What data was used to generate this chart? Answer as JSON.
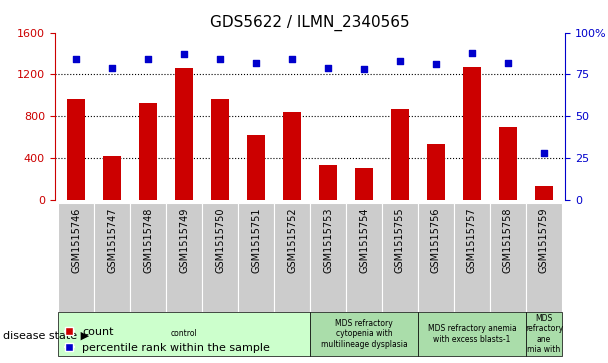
{
  "title": "GDS5622 / ILMN_2340565",
  "samples": [
    "GSM1515746",
    "GSM1515747",
    "GSM1515748",
    "GSM1515749",
    "GSM1515750",
    "GSM1515751",
    "GSM1515752",
    "GSM1515753",
    "GSM1515754",
    "GSM1515755",
    "GSM1515756",
    "GSM1515757",
    "GSM1515758",
    "GSM1515759"
  ],
  "counts": [
    960,
    420,
    930,
    1260,
    960,
    620,
    840,
    330,
    300,
    870,
    530,
    1270,
    700,
    130
  ],
  "percentiles": [
    84,
    79,
    84,
    87,
    84,
    82,
    84,
    79,
    78,
    83,
    81,
    88,
    82,
    28
  ],
  "bar_color": "#cc0000",
  "dot_color": "#0000cc",
  "ylim_left": [
    0,
    1600
  ],
  "ylim_right": [
    0,
    100
  ],
  "yticks_left": [
    0,
    400,
    800,
    1200,
    1600
  ],
  "yticks_right": [
    0,
    25,
    50,
    75,
    100
  ],
  "yticklabels_right": [
    "0",
    "25",
    "50",
    "75",
    "100%"
  ],
  "disease_groups": [
    {
      "label": "control",
      "start": 0,
      "end": 7,
      "color": "#ccffcc"
    },
    {
      "label": "MDS refractory\ncytopenia with\nmultilineage dysplasia",
      "start": 7,
      "end": 10,
      "color": "#aaddaa"
    },
    {
      "label": "MDS refractory anemia\nwith excess blasts-1",
      "start": 10,
      "end": 13,
      "color": "#aaddaa"
    },
    {
      "label": "MDS\nrefractory\nane\nmia with",
      "start": 13,
      "end": 14,
      "color": "#aaddaa"
    }
  ],
  "disease_state_label": "disease state",
  "legend_count_label": "count",
  "legend_pct_label": "percentile rank within the sample",
  "bg_color": "#ffffff",
  "tick_bg_color": "#cccccc",
  "grid_color": "#000000",
  "title_fontsize": 11,
  "tick_fontsize": 7,
  "label_fontsize": 8,
  "bar_width": 0.5
}
